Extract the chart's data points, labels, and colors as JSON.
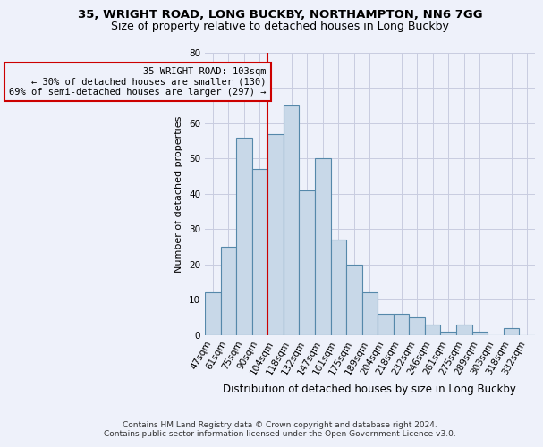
{
  "title1": "35, WRIGHT ROAD, LONG BUCKBY, NORTHAMPTON, NN6 7GG",
  "title2": "Size of property relative to detached houses in Long Buckby",
  "xlabel": "Distribution of detached houses by size in Long Buckby",
  "ylabel": "Number of detached properties",
  "categories": [
    "47sqm",
    "61sqm",
    "75sqm",
    "90sqm",
    "104sqm",
    "118sqm",
    "132sqm",
    "147sqm",
    "161sqm",
    "175sqm",
    "189sqm",
    "204sqm",
    "218sqm",
    "232sqm",
    "246sqm",
    "261sqm",
    "275sqm",
    "289sqm",
    "303sqm",
    "318sqm",
    "332sqm"
  ],
  "values": [
    12,
    25,
    56,
    47,
    57,
    65,
    41,
    50,
    27,
    20,
    12,
    6,
    6,
    5,
    3,
    1,
    3,
    1,
    0,
    2,
    0
  ],
  "bar_color": "#c8d8e8",
  "bar_edge_color": "#5588aa",
  "vline_index": 4,
  "marker_label_line1": "35 WRIGHT ROAD: 103sqm",
  "marker_label_line2": "← 30% of detached houses are smaller (130)",
  "marker_label_line3": "69% of semi-detached houses are larger (297) →",
  "footnote1": "Contains HM Land Registry data © Crown copyright and database right 2024.",
  "footnote2": "Contains public sector information licensed under the Open Government Licence v3.0.",
  "ylim": [
    0,
    80
  ],
  "yticks": [
    0,
    10,
    20,
    30,
    40,
    50,
    60,
    70,
    80
  ],
  "annotation_box_color": "#cc0000",
  "vline_color": "#cc0000",
  "grid_color": "#c8cce0",
  "background_color": "#eef1fa",
  "title1_fontsize": 9.5,
  "title2_fontsize": 9.0,
  "xlabel_fontsize": 8.5,
  "ylabel_fontsize": 8.0,
  "tick_fontsize": 7.5,
  "annot_fontsize": 7.5,
  "footnote_fontsize": 6.5
}
